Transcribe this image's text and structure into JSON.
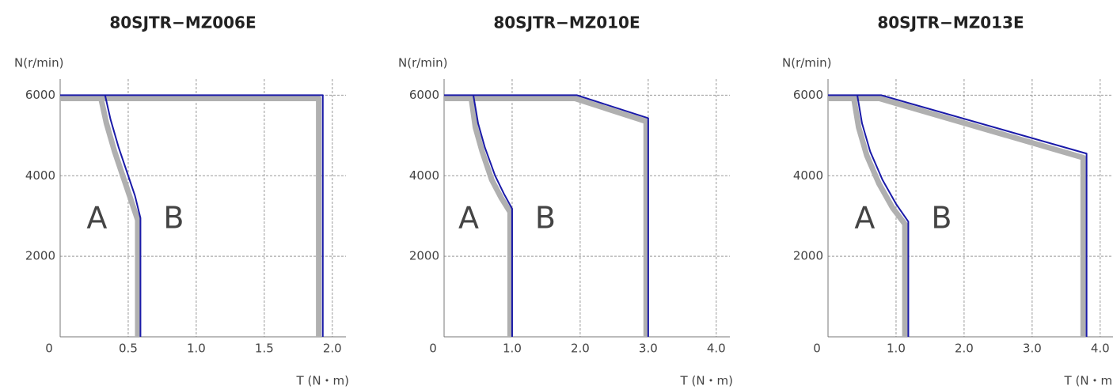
{
  "chart_data": [
    {
      "type": "line",
      "title": "80SJTR−MZ006E",
      "xlabel": "T (N・m)",
      "ylabel": "N(r/min)",
      "xlim": [
        0,
        2.1
      ],
      "ylim": [
        0,
        6400
      ],
      "xticks": [
        0,
        0.5,
        {
          "value": 1,
          "label": "1.0"
        },
        1.5,
        {
          "value": 2,
          "label": "2.0"
        }
      ],
      "yticks": [
        2000,
        4000,
        6000
      ],
      "grid": true,
      "annotations": [
        "A",
        "B"
      ],
      "series": [
        {
          "color": "#b0b0b0",
          "x": [
            0,
            1.9,
            1.9
          ],
          "values": [
            5920,
            5920,
            0
          ]
        },
        {
          "color": "#b0b0b0",
          "x": [
            0.3,
            0.34,
            0.4,
            0.47,
            0.52,
            0.57,
            0.57
          ],
          "values": [
            5920,
            5300,
            4600,
            3900,
            3400,
            2900,
            0
          ]
        },
        {
          "color": "#1a1aa8",
          "x": [
            0.33,
            0.37,
            0.43,
            0.5,
            0.55,
            0.59,
            0.59
          ],
          "values": [
            6000,
            5400,
            4700,
            4000,
            3500,
            2950,
            0
          ]
        },
        {
          "color": "#1a1aa8",
          "x": [
            0,
            1.93,
            1.93
          ],
          "values": [
            6000,
            6000,
            0
          ]
        }
      ]
    },
    {
      "type": "line",
      "title": "80SJTR−MZ010E",
      "xlabel": "T (N・m)",
      "ylabel": "N(r/min)",
      "xlim": [
        0,
        4.2
      ],
      "ylim": [
        0,
        6400
      ],
      "xticks": [
        0,
        {
          "value": 1,
          "label": "1.0"
        },
        {
          "value": 2,
          "label": "2.0"
        },
        {
          "value": 3,
          "label": "3.0"
        },
        {
          "value": 4,
          "label": "4.0"
        }
      ],
      "yticks": [
        2000,
        4000,
        6000
      ],
      "grid": true,
      "annotations": [
        "A",
        "B"
      ],
      "series": [
        {
          "color": "#b0b0b0",
          "x": [
            0,
            1.92,
            2.97,
            2.97
          ],
          "values": [
            5920,
            5920,
            5350,
            0
          ]
        },
        {
          "color": "#b0b0b0",
          "x": [
            0.4,
            0.46,
            0.56,
            0.7,
            0.84,
            0.97,
            0.97
          ],
          "values": [
            5920,
            5200,
            4600,
            3900,
            3450,
            3100,
            0
          ]
        },
        {
          "color": "#1a1aa8",
          "x": [
            0.43,
            0.5,
            0.6,
            0.75,
            0.88,
            1.0,
            1.0
          ],
          "values": [
            6000,
            5300,
            4700,
            4000,
            3550,
            3180,
            0
          ]
        },
        {
          "color": "#1a1aa8",
          "x": [
            0,
            1.95,
            3.0,
            3.0
          ],
          "values": [
            6000,
            6000,
            5430,
            0
          ]
        }
      ]
    },
    {
      "type": "line",
      "title": "80SJTR−MZ013E",
      "xlabel": "T (N・m)",
      "ylabel": "N(r/min)",
      "xlim": [
        0,
        4.2
      ],
      "ylim": [
        0,
        6400
      ],
      "xticks": [
        0,
        {
          "value": 1,
          "label": "1.0"
        },
        {
          "value": 2,
          "label": "2.0"
        },
        {
          "value": 3,
          "label": "3.0"
        },
        {
          "value": 4,
          "label": "4.0"
        }
      ],
      "yticks": [
        2000,
        4000,
        6000
      ],
      "grid": true,
      "annotations": [
        "A",
        "B"
      ],
      "series": [
        {
          "color": "#b0b0b0",
          "x": [
            0,
            0.75,
            3.75,
            3.75
          ],
          "values": [
            5920,
            5920,
            4450,
            0
          ]
        },
        {
          "color": "#b0b0b0",
          "x": [
            0.38,
            0.45,
            0.57,
            0.75,
            0.95,
            1.13,
            1.13
          ],
          "values": [
            5920,
            5200,
            4500,
            3800,
            3200,
            2800,
            0
          ]
        },
        {
          "color": "#1a1aa8",
          "x": [
            0.43,
            0.5,
            0.62,
            0.8,
            1.0,
            1.18,
            1.18
          ],
          "values": [
            6000,
            5300,
            4600,
            3900,
            3300,
            2860,
            0
          ]
        },
        {
          "color": "#1a1aa8",
          "x": [
            0,
            0.78,
            3.8,
            3.8
          ],
          "values": [
            6000,
            6000,
            4550,
            0
          ]
        }
      ]
    }
  ]
}
